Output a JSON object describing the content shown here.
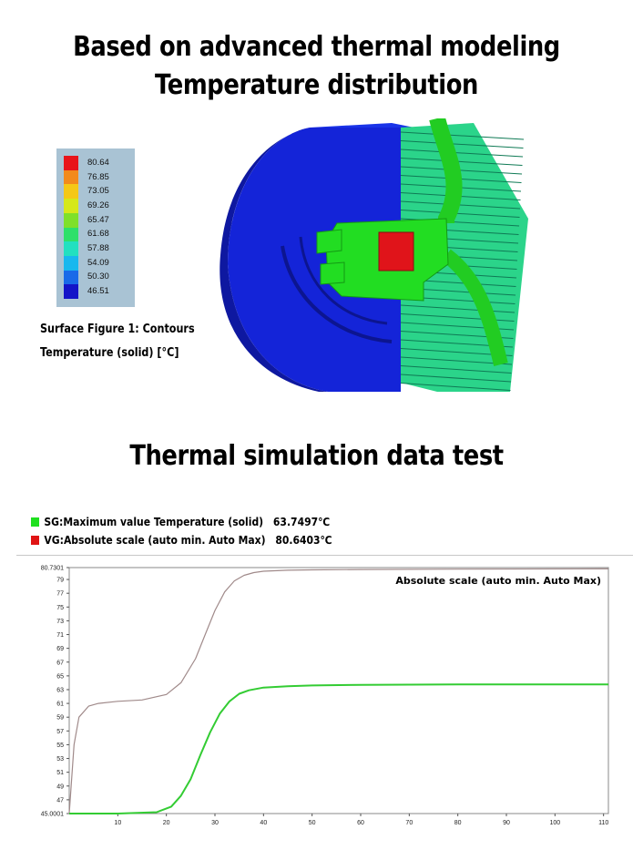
{
  "header": {
    "title_line1": "Based on advanced thermal modeling",
    "title_line2": "Temperature distribution",
    "section2_title": "Thermal simulation data test"
  },
  "contour_legend": {
    "values": [
      "80.64",
      "76.85",
      "73.05",
      "69.26",
      "65.47",
      "61.68",
      "57.88",
      "54.09",
      "50.30",
      "46.51"
    ],
    "colors": [
      "#e8141a",
      "#f28a1c",
      "#f5c816",
      "#d6e81a",
      "#7fe02a",
      "#2ee06a",
      "#22e0c0",
      "#18b8ee",
      "#1a6ae8",
      "#1414c8"
    ],
    "caption1": "Surface Figure 1: Contours",
    "caption2": "Temperature (solid) [°C]"
  },
  "series_legend": {
    "sg_label": "SG:Maximum value Temperature (solid)",
    "sg_value": "63.7497℃",
    "sg_color": "#1fe01f",
    "vg_label": "VG:Absolute scale (auto min. Auto Max)",
    "vg_value": "80.6403℃",
    "vg_color": "#e01414"
  },
  "chart_data": {
    "type": "line",
    "annotation": "Absolute scale (auto min. Auto Max)",
    "xlim": [
      0,
      111
    ],
    "ylim": [
      45.0001,
      80.7301
    ],
    "x_ticks": [
      "10",
      "20",
      "30",
      "40",
      "50",
      "60",
      "70",
      "80",
      "90",
      "100",
      "110"
    ],
    "y_ticks": [
      "80.7301",
      "79",
      "77",
      "75",
      "73",
      "71",
      "69",
      "67",
      "65",
      "63",
      "61",
      "59",
      "57",
      "55",
      "53",
      "51",
      "49",
      "47",
      "45.0001"
    ],
    "series": [
      {
        "color": "#a08a8a",
        "x": [
          0,
          1,
          2,
          4,
          6,
          10,
          15,
          20,
          23,
          26,
          28,
          30,
          32,
          34,
          36,
          38,
          40,
          45,
          50,
          60,
          80,
          111
        ],
        "y": [
          45.0,
          55.0,
          59.0,
          60.6,
          61.0,
          61.3,
          61.5,
          62.3,
          64.0,
          67.5,
          71.0,
          74.5,
          77.2,
          78.8,
          79.6,
          80.0,
          80.2,
          80.35,
          80.4,
          80.45,
          80.5,
          80.55
        ]
      },
      {
        "color": "#33cc33",
        "x": [
          0,
          10,
          18,
          21,
          23,
          25,
          27,
          29,
          31,
          33,
          35,
          37,
          40,
          45,
          50,
          60,
          80,
          111
        ],
        "y": [
          45.0,
          45.0,
          45.2,
          46.0,
          47.6,
          50.0,
          53.5,
          56.8,
          59.5,
          61.3,
          62.4,
          62.9,
          63.3,
          63.5,
          63.6,
          63.7,
          63.75,
          63.75
        ]
      }
    ]
  }
}
